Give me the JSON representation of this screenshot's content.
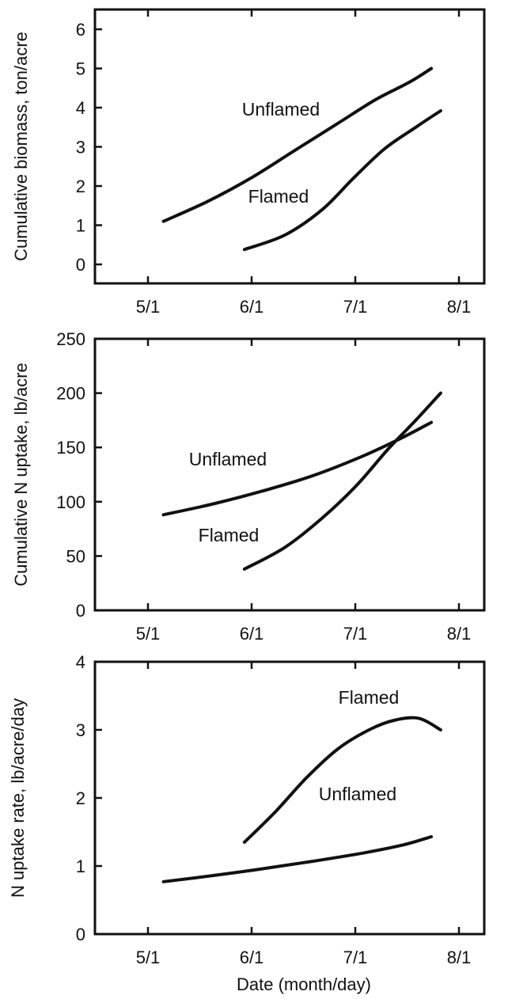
{
  "chart_data": [
    {
      "type": "line",
      "ylabel": "Cumulative biomass, ton/acre",
      "x_ticks": [
        "5/1",
        "6/1",
        "7/1",
        "8/1"
      ],
      "y_ticks": [
        "0",
        "1",
        "2",
        "3",
        "4",
        "5",
        "6"
      ],
      "ylim": [
        -0.5,
        6.5
      ],
      "xlim": [
        "4/12",
        "8/15"
      ],
      "grid": false,
      "legend": "none",
      "series": [
        {
          "name": "Unflamed",
          "points": [
            [
              "5/4",
              1.1
            ],
            [
              "5/18",
              1.6
            ],
            [
              "6/1",
              2.2
            ],
            [
              "6/15",
              2.9
            ],
            [
              "6/29",
              3.6
            ],
            [
              "7/11",
              4.2
            ],
            [
              "7/22",
              4.65
            ],
            [
              "7/29",
              5.0
            ]
          ]
        },
        {
          "name": "Flamed",
          "points": [
            [
              "5/30",
              0.38
            ],
            [
              "6/12",
              0.75
            ],
            [
              "6/24",
              1.4
            ],
            [
              "7/4",
              2.2
            ],
            [
              "7/14",
              2.95
            ],
            [
              "7/24",
              3.5
            ],
            [
              "8/1",
              3.92
            ]
          ]
        }
      ]
    },
    {
      "type": "line",
      "ylabel": "Cumulative N uptake, lb/acre",
      "x_ticks": [
        "5/1",
        "6/1",
        "7/1",
        "8/1"
      ],
      "y_ticks": [
        "0",
        "50",
        "100",
        "150",
        "200",
        "250"
      ],
      "ylim": [
        0,
        250
      ],
      "xlim": [
        "4/12",
        "8/15"
      ],
      "grid": false,
      "legend": "none",
      "series": [
        {
          "name": "Unflamed",
          "points": [
            [
              "5/4",
              88
            ],
            [
              "5/20",
              98
            ],
            [
              "6/5",
              110
            ],
            [
              "6/21",
              124
            ],
            [
              "7/7",
              142
            ],
            [
              "7/19",
              158
            ],
            [
              "7/29",
              173
            ]
          ]
        },
        {
          "name": "Flamed",
          "points": [
            [
              "5/30",
              38
            ],
            [
              "6/12",
              58
            ],
            [
              "6/24",
              85
            ],
            [
              "7/5",
              115
            ],
            [
              "7/15",
              148
            ],
            [
              "7/24",
              175
            ],
            [
              "8/1",
              200
            ]
          ]
        }
      ]
    },
    {
      "type": "line",
      "ylabel": "N uptake rate, lb/acre/day",
      "xlabel": "Date (month/day)",
      "x_ticks": [
        "5/1",
        "6/1",
        "7/1",
        "8/1"
      ],
      "y_ticks": [
        "0",
        "1",
        "2",
        "3",
        "4"
      ],
      "ylim": [
        0,
        4
      ],
      "xlim": [
        "4/12",
        "8/15"
      ],
      "grid": false,
      "legend": "none",
      "series": [
        {
          "name": "Flamed",
          "points": [
            [
              "5/30",
              1.35
            ],
            [
              "6/9",
              1.8
            ],
            [
              "6/19",
              2.3
            ],
            [
              "6/29",
              2.72
            ],
            [
              "7/9",
              3.0
            ],
            [
              "7/17",
              3.14
            ],
            [
              "7/25",
              3.17
            ],
            [
              "8/1",
              3.0
            ]
          ]
        },
        {
          "name": "Unflamed",
          "points": [
            [
              "5/4",
              0.77
            ],
            [
              "5/20",
              0.86
            ],
            [
              "6/5",
              0.96
            ],
            [
              "6/21",
              1.07
            ],
            [
              "7/7",
              1.19
            ],
            [
              "7/20",
              1.31
            ],
            [
              "7/29",
              1.43
            ]
          ]
        }
      ]
    }
  ]
}
